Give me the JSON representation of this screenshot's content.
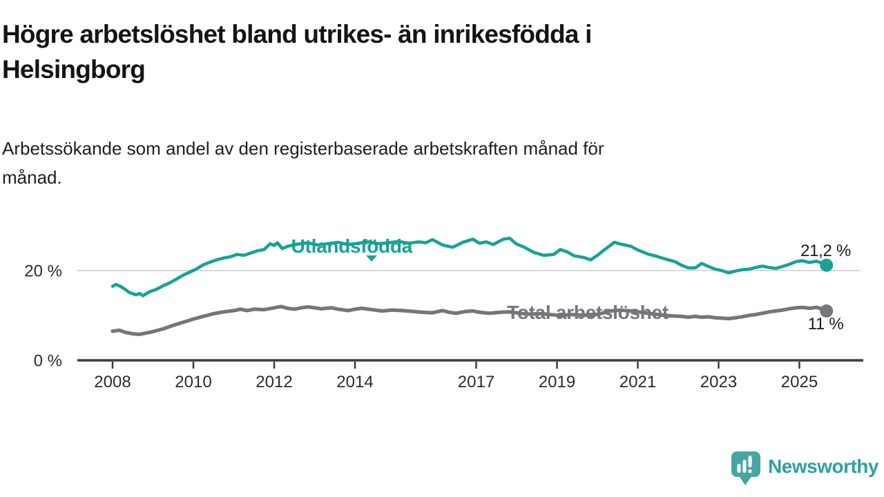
{
  "header": {
    "title_line1": "Högre arbetslöshet bland utrikes- än inrikesfödda i",
    "title_line2": "Helsingborg",
    "subtitle_line1": "Arbetssökande som andel av den registerbaserade arbetskraften månad för",
    "subtitle_line2": "månad."
  },
  "colors": {
    "teal": "#18a296",
    "gray": "#76757b",
    "axis": "#3c3c3c",
    "grid": "#d9d9d9",
    "tick_text": "#2b2b2b",
    "value_text": "#1a1a1a",
    "logo_bubble": "#48a5a2",
    "logo_text": "#2f9fa1"
  },
  "chart_data": {
    "type": "line",
    "title": "Högre arbetslöshet bland utrikes- än inrikesfödda i Helsingborg",
    "subtitle": "Arbetssökande som andel av den registerbaserade arbetskraften månad för månad.",
    "unit": "%",
    "xlim": [
      2007.6,
      2025.9
    ],
    "ylim": [
      0,
      30
    ],
    "grid": "horizontal-only",
    "x_ticks": [
      2008,
      2010,
      2012,
      2014,
      2017,
      2019,
      2021,
      2023,
      2025
    ],
    "y_ticks": [
      {
        "value": 0,
        "label": "0 %"
      },
      {
        "value": 20,
        "label": "20 %"
      }
    ],
    "series": [
      {
        "name": "Utlandsfödda",
        "color_key": "teal",
        "end_value": 21.2,
        "end_label": "21,2 %",
        "points": [
          [
            2008.0,
            16.5
          ],
          [
            2008.08,
            16.9
          ],
          [
            2008.17,
            16.6
          ],
          [
            2008.25,
            16.2
          ],
          [
            2008.42,
            15.1
          ],
          [
            2008.58,
            14.6
          ],
          [
            2008.67,
            14.9
          ],
          [
            2008.75,
            14.4
          ],
          [
            2008.92,
            15.3
          ],
          [
            2009.08,
            15.8
          ],
          [
            2009.25,
            16.6
          ],
          [
            2009.42,
            17.3
          ],
          [
            2009.58,
            18.1
          ],
          [
            2009.75,
            19.0
          ],
          [
            2009.92,
            19.7
          ],
          [
            2010.08,
            20.4
          ],
          [
            2010.25,
            21.3
          ],
          [
            2010.42,
            21.9
          ],
          [
            2010.58,
            22.4
          ],
          [
            2010.75,
            22.8
          ],
          [
            2010.92,
            23.1
          ],
          [
            2011.08,
            23.6
          ],
          [
            2011.25,
            23.4
          ],
          [
            2011.42,
            23.9
          ],
          [
            2011.58,
            24.4
          ],
          [
            2011.75,
            24.7
          ],
          [
            2011.9,
            26.0
          ],
          [
            2012.0,
            25.6
          ],
          [
            2012.08,
            26.2
          ],
          [
            2012.2,
            24.9
          ],
          [
            2012.33,
            25.4
          ],
          [
            2012.58,
            25.9
          ],
          [
            2012.83,
            26.2
          ],
          [
            2013.08,
            25.7
          ],
          [
            2013.33,
            26.0
          ],
          [
            2013.58,
            26.3
          ],
          [
            2013.83,
            25.8
          ],
          [
            2014.08,
            26.1
          ],
          [
            2014.33,
            26.4
          ],
          [
            2014.58,
            26.0
          ],
          [
            2014.83,
            26.2
          ],
          [
            2015.08,
            26.5
          ],
          [
            2015.33,
            26.1
          ],
          [
            2015.58,
            26.4
          ],
          [
            2015.75,
            26.2
          ],
          [
            2015.92,
            26.9
          ],
          [
            2016.17,
            25.7
          ],
          [
            2016.42,
            25.2
          ],
          [
            2016.67,
            26.3
          ],
          [
            2016.92,
            27.0
          ],
          [
            2017.08,
            26.1
          ],
          [
            2017.25,
            26.4
          ],
          [
            2017.42,
            25.8
          ],
          [
            2017.67,
            27.0
          ],
          [
            2017.83,
            27.2
          ],
          [
            2018.0,
            25.9
          ],
          [
            2018.17,
            25.3
          ],
          [
            2018.42,
            24.1
          ],
          [
            2018.67,
            23.4
          ],
          [
            2018.92,
            23.6
          ],
          [
            2019.08,
            24.7
          ],
          [
            2019.25,
            24.2
          ],
          [
            2019.42,
            23.3
          ],
          [
            2019.67,
            22.9
          ],
          [
            2019.83,
            22.4
          ],
          [
            2020.0,
            23.4
          ],
          [
            2020.17,
            24.6
          ],
          [
            2020.42,
            26.3
          ],
          [
            2020.58,
            25.9
          ],
          [
            2020.83,
            25.4
          ],
          [
            2021.0,
            24.6
          ],
          [
            2021.25,
            23.7
          ],
          [
            2021.5,
            23.1
          ],
          [
            2021.75,
            22.4
          ],
          [
            2021.92,
            22.0
          ],
          [
            2022.08,
            21.2
          ],
          [
            2022.25,
            20.6
          ],
          [
            2022.42,
            20.6
          ],
          [
            2022.58,
            21.6
          ],
          [
            2022.75,
            20.9
          ],
          [
            2022.92,
            20.3
          ],
          [
            2023.08,
            20.0
          ],
          [
            2023.25,
            19.5
          ],
          [
            2023.42,
            19.9
          ],
          [
            2023.58,
            20.2
          ],
          [
            2023.75,
            20.3
          ],
          [
            2023.92,
            20.7
          ],
          [
            2024.08,
            21.0
          ],
          [
            2024.25,
            20.7
          ],
          [
            2024.42,
            20.5
          ],
          [
            2024.58,
            20.9
          ],
          [
            2024.75,
            21.4
          ],
          [
            2024.92,
            22.0
          ],
          [
            2025.08,
            22.2
          ],
          [
            2025.25,
            21.8
          ],
          [
            2025.42,
            22.1
          ],
          [
            2025.58,
            21.6
          ],
          [
            2025.67,
            21.2
          ]
        ]
      },
      {
        "name": "Total arbetslöshet",
        "color_key": "gray",
        "end_value": 11,
        "end_label": "11 %",
        "points": [
          [
            2008.0,
            6.5
          ],
          [
            2008.17,
            6.7
          ],
          [
            2008.33,
            6.2
          ],
          [
            2008.5,
            5.9
          ],
          [
            2008.67,
            5.8
          ],
          [
            2008.83,
            6.1
          ],
          [
            2009.0,
            6.4
          ],
          [
            2009.25,
            7.0
          ],
          [
            2009.5,
            7.8
          ],
          [
            2009.75,
            8.5
          ],
          [
            2010.0,
            9.2
          ],
          [
            2010.25,
            9.8
          ],
          [
            2010.5,
            10.4
          ],
          [
            2010.75,
            10.8
          ],
          [
            2011.0,
            11.1
          ],
          [
            2011.17,
            11.4
          ],
          [
            2011.33,
            11.1
          ],
          [
            2011.5,
            11.4
          ],
          [
            2011.75,
            11.3
          ],
          [
            2012.0,
            11.7
          ],
          [
            2012.17,
            12.0
          ],
          [
            2012.33,
            11.6
          ],
          [
            2012.5,
            11.4
          ],
          [
            2012.67,
            11.7
          ],
          [
            2012.83,
            11.9
          ],
          [
            2013.0,
            11.7
          ],
          [
            2013.17,
            11.5
          ],
          [
            2013.42,
            11.7
          ],
          [
            2013.58,
            11.4
          ],
          [
            2013.83,
            11.1
          ],
          [
            2014.0,
            11.4
          ],
          [
            2014.17,
            11.6
          ],
          [
            2014.42,
            11.3
          ],
          [
            2014.67,
            11.0
          ],
          [
            2014.92,
            11.2
          ],
          [
            2015.17,
            11.1
          ],
          [
            2015.42,
            10.9
          ],
          [
            2015.67,
            10.7
          ],
          [
            2015.92,
            10.6
          ],
          [
            2016.17,
            11.1
          ],
          [
            2016.33,
            10.7
          ],
          [
            2016.5,
            10.5
          ],
          [
            2016.75,
            10.9
          ],
          [
            2016.92,
            11.0
          ],
          [
            2017.08,
            10.7
          ],
          [
            2017.33,
            10.5
          ],
          [
            2017.58,
            10.7
          ],
          [
            2017.83,
            10.8
          ],
          [
            2018.08,
            10.5
          ],
          [
            2018.33,
            10.3
          ],
          [
            2018.58,
            10.4
          ],
          [
            2018.83,
            10.2
          ],
          [
            2019.08,
            10.0
          ],
          [
            2019.33,
            10.2
          ],
          [
            2019.58,
            10.1
          ],
          [
            2019.83,
            10.0
          ],
          [
            2020.08,
            10.4
          ],
          [
            2020.33,
            11.0
          ],
          [
            2020.58,
            11.2
          ],
          [
            2020.83,
            11.0
          ],
          [
            2021.08,
            10.7
          ],
          [
            2021.33,
            10.4
          ],
          [
            2021.58,
            10.1
          ],
          [
            2021.83,
            9.9
          ],
          [
            2022.08,
            9.8
          ],
          [
            2022.25,
            9.6
          ],
          [
            2022.42,
            9.8
          ],
          [
            2022.58,
            9.6
          ],
          [
            2022.75,
            9.7
          ],
          [
            2022.92,
            9.5
          ],
          [
            2023.08,
            9.4
          ],
          [
            2023.25,
            9.3
          ],
          [
            2023.42,
            9.5
          ],
          [
            2023.58,
            9.7
          ],
          [
            2023.75,
            10.0
          ],
          [
            2023.92,
            10.2
          ],
          [
            2024.08,
            10.5
          ],
          [
            2024.25,
            10.8
          ],
          [
            2024.42,
            11.0
          ],
          [
            2024.58,
            11.2
          ],
          [
            2024.75,
            11.5
          ],
          [
            2024.92,
            11.7
          ],
          [
            2025.08,
            11.8
          ],
          [
            2025.25,
            11.6
          ],
          [
            2025.42,
            11.8
          ],
          [
            2025.58,
            11.4
          ],
          [
            2025.67,
            11.0
          ]
        ]
      }
    ],
    "annotations": [
      {
        "id": "label-utlandsfodda",
        "text": "Utlandsfödda",
        "t": 2013.92,
        "v": 24.0,
        "color_key": "teal",
        "size": 28,
        "bold": true,
        "arrow": {
          "t": 2014.41,
          "v": 22.0
        }
      },
      {
        "id": "label-total",
        "text": "Total arbetslöshet",
        "t": 2019.76,
        "v": 9.2,
        "color_key": "gray",
        "size": 28,
        "bold": true
      },
      {
        "id": "value-utlandsfodda",
        "text": "21,2 %",
        "t": 2025.65,
        "v": 23.2,
        "color_key": "value_text",
        "size": 24,
        "bold": false
      },
      {
        "id": "value-total",
        "text": "11 %",
        "t": 2025.65,
        "v": 6.9,
        "color_key": "value_text",
        "size": 24,
        "bold": false
      }
    ],
    "legend_position": "inline-labels"
  },
  "branding": {
    "logo_text": "Newsworthy"
  }
}
